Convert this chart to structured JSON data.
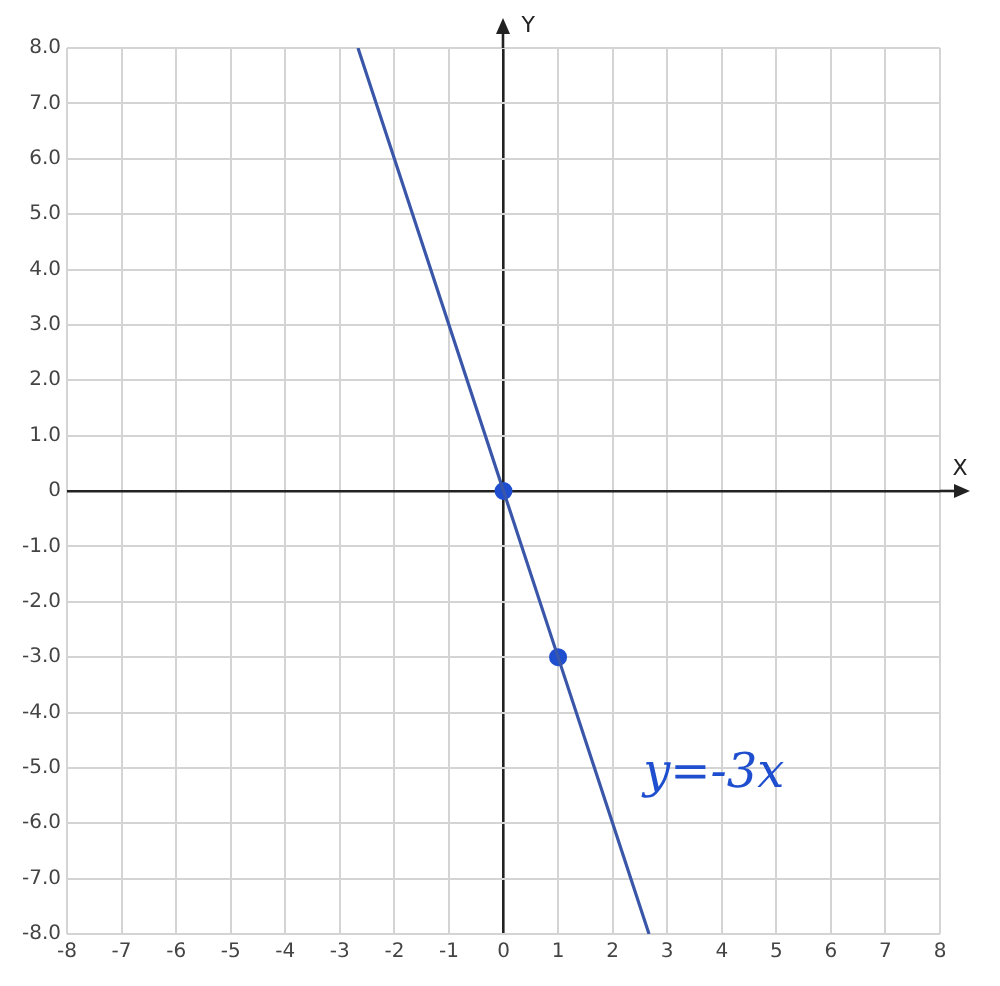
{
  "chart_data": {
    "type": "line",
    "xlabel": "X",
    "ylabel": "Y",
    "series": [
      {
        "type": "line",
        "color": "#3a56a8",
        "x": [
          -2.667,
          0,
          1,
          2.667
        ],
        "values": [
          8,
          0,
          -3,
          -8
        ],
        "marker": "none"
      },
      {
        "type": "scatter",
        "color": "#1f4fcf",
        "x": [
          0,
          1
        ],
        "values": [
          0,
          -3
        ],
        "marker": "circle"
      }
    ],
    "xlim": [
      -8,
      8
    ],
    "xticks": [
      -8,
      -7,
      -6,
      -5,
      -4,
      -3,
      -2,
      -1,
      0,
      1,
      2,
      3,
      4,
      5,
      6,
      7,
      8
    ],
    "ylim": [
      -8,
      8
    ],
    "yticks": [
      {
        "value": -8,
        "label": "-8.0"
      },
      {
        "value": -7,
        "label": "-7.0"
      },
      {
        "value": -6,
        "label": "-6.0"
      },
      {
        "value": -5,
        "label": "-5.0"
      },
      {
        "value": -4,
        "label": "-4.0"
      },
      {
        "value": -3,
        "label": "-3.0"
      },
      {
        "value": -2,
        "label": "-2.0"
      },
      {
        "value": -1,
        "label": "-1.0"
      },
      0,
      {
        "value": 1,
        "label": "1.0"
      },
      {
        "value": 2,
        "label": "2.0"
      },
      {
        "value": 3,
        "label": "3.0"
      },
      {
        "value": 4,
        "label": "4.0"
      },
      {
        "value": 5,
        "label": "5.0"
      },
      {
        "value": 6,
        "label": "6.0"
      },
      {
        "value": 7,
        "label": "7.0"
      },
      {
        "value": 8,
        "label": "8.0"
      }
    ],
    "annotations": [
      "y=-3x"
    ],
    "grid": true,
    "legend": false
  }
}
